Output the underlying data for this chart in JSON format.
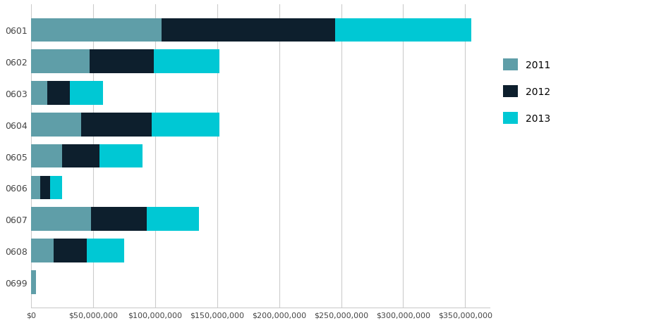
{
  "categories": [
    "0601",
    "0602",
    "0603",
    "0604",
    "0605",
    "0606",
    "0607",
    "0608",
    "0699"
  ],
  "series": {
    "2011": [
      105000000,
      47000000,
      13000000,
      40000000,
      25000000,
      7000000,
      48000000,
      18000000,
      4000000
    ],
    "2012": [
      140000000,
      52000000,
      18000000,
      57000000,
      30000000,
      8000000,
      45000000,
      27000000,
      0
    ],
    "2013": [
      110000000,
      53000000,
      27000000,
      55000000,
      35000000,
      10000000,
      42000000,
      30000000,
      0
    ]
  },
  "colors": {
    "2011": "#5f9ea8",
    "2012": "#0d1f2d",
    "2013": "#00c8d4"
  },
  "xlim": [
    0,
    370000000
  ],
  "xticks": [
    0,
    50000000,
    100000000,
    150000000,
    200000000,
    250000000,
    300000000,
    350000000
  ],
  "background_color": "#ffffff",
  "bar_height": 0.75,
  "figsize": [
    9.45,
    4.6
  ],
  "dpi": 100
}
